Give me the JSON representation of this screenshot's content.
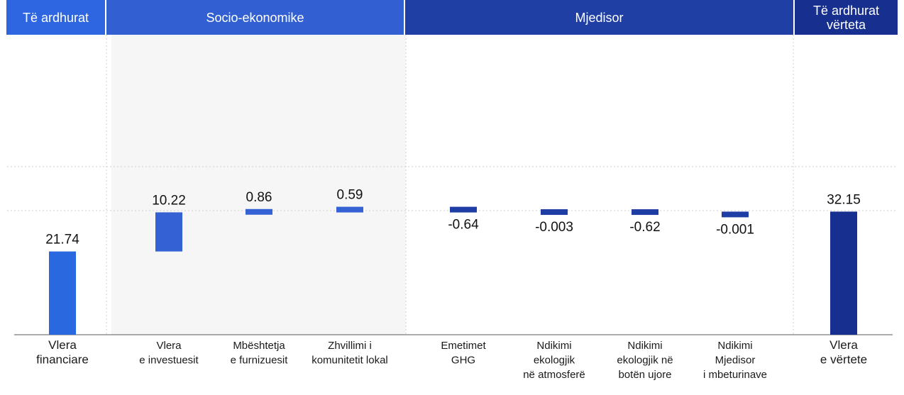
{
  "headers": [
    {
      "label": "Të ardhurat",
      "color": "#2e66e2"
    },
    {
      "label": "Socio-ekonomike",
      "color": "#3260d2"
    },
    {
      "label": "Mjedisor",
      "color": "#1f3fa5"
    },
    {
      "label": "Të ardhurat vërteta",
      "color": "#17308f"
    }
  ],
  "chart_data": {
    "type": "bar",
    "subtype": "waterfall",
    "categories": [
      [
        "Vlera",
        "financiare"
      ],
      [
        "Vlera",
        "e investuesit"
      ],
      [
        "Mbështetja",
        "e furnizuesit"
      ],
      [
        "Zhvillimi i",
        "komunitetit lokal"
      ],
      [
        "Emetimet",
        "GHG"
      ],
      [
        "Ndikimi",
        "ekologjik",
        "në atmosferë"
      ],
      [
        "Ndikimi",
        "ekologjik në",
        "botën ujore"
      ],
      [
        "Ndikimi",
        "Mjedisor",
        "i mbeturinave"
      ],
      [
        "Vlera",
        "e vërtete"
      ]
    ],
    "values": [
      21.74,
      10.22,
      0.86,
      0.59,
      -0.64,
      -0.003,
      -0.62,
      -0.001,
      32.15
    ],
    "value_labels": [
      "21.74",
      "10.22",
      "0.86",
      "0.59",
      "-0.64",
      "-0.003",
      "-0.62",
      "-0.001",
      "32.15"
    ],
    "kinds": [
      "total",
      "delta",
      "delta",
      "delta",
      "delta",
      "delta",
      "delta",
      "delta",
      "total"
    ],
    "colors": [
      "#2a68e0",
      "#3462d4",
      "#3462d4",
      "#3462d4",
      "#1f3ea5",
      "#1f3ea5",
      "#1f3ea5",
      "#1f3ea5",
      "#172f8f"
    ],
    "grid": true,
    "legend": "none"
  }
}
